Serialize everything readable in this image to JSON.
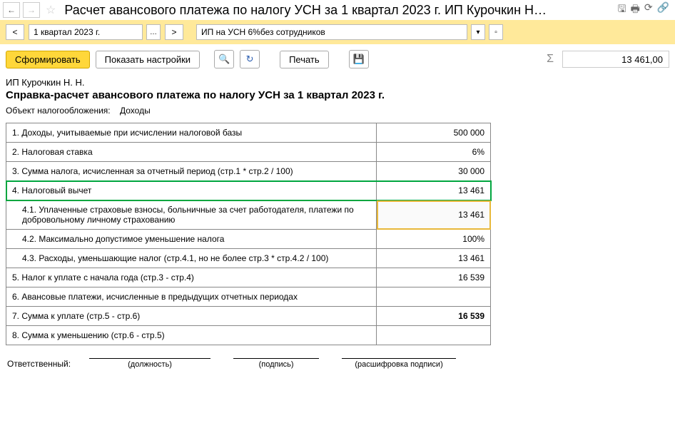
{
  "title": "Расчет  авансового платежа по налогу УСН за 1 квартал 2023 г. ИП Курочкин Н…",
  "period": "1 квартал 2023 г.",
  "org": "ИП на УСН 6%без сотрудников",
  "toolbar": {
    "form": "Сформировать",
    "showSettings": "Показать настройки",
    "print": "Печать"
  },
  "sumValue": "13 461,00",
  "report": {
    "ipName": "ИП Курочкин Н. Н.",
    "heading": "Справка-расчет авансового платежа по налогу УСН за 1 квартал 2023 г.",
    "taxObjectLabel": "Объект налогообложения:",
    "taxObjectValue": "Доходы"
  },
  "rows": [
    {
      "label": "1. Доходы, учитываемые при исчислении налоговой базы",
      "value": "500 000",
      "indent": false
    },
    {
      "label": "2. Налоговая ставка",
      "value": "6%",
      "indent": false
    },
    {
      "label": "3. Сумма налога, исчисленная за отчетный период (стр.1 * стр.2 / 100)",
      "value": "30 000",
      "indent": false
    },
    {
      "label": "4. Налоговый вычет",
      "value": "13 461",
      "indent": false,
      "green": true
    },
    {
      "label": "4.1. Уплаченные страховые взносы, больничные за счет работодателя, платежи по добровольному личному страхованию",
      "value": "13 461",
      "indent": true,
      "yellowCell": true
    },
    {
      "label": "4.2. Максимально допустимое уменьшение налога",
      "value": "100%",
      "indent": true
    },
    {
      "label": "4.3. Расходы, уменьшающие налог (стр.4.1, но не более стр.3 * стр.4.2 / 100)",
      "value": "13 461",
      "indent": true
    },
    {
      "label": "5. Налог к уплате с начала года (стр.3 - стр.4)",
      "value": "16 539",
      "indent": false
    },
    {
      "label": "6. Авансовые платежи, исчисленные в предыдущих отчетных периодах",
      "value": "",
      "indent": false
    },
    {
      "label": "7. Сумма к уплате (стр.5 - стр.6)",
      "value": "16 539",
      "indent": false,
      "bold": true
    },
    {
      "label": "8. Сумма к уменьшению (стр.6 - стр.5)",
      "value": "",
      "indent": false
    }
  ],
  "signature": {
    "responsible": "Ответственный:",
    "position": "(должность)",
    "sign": "(подпись)",
    "decipher": "(расшифровка подписи)"
  }
}
